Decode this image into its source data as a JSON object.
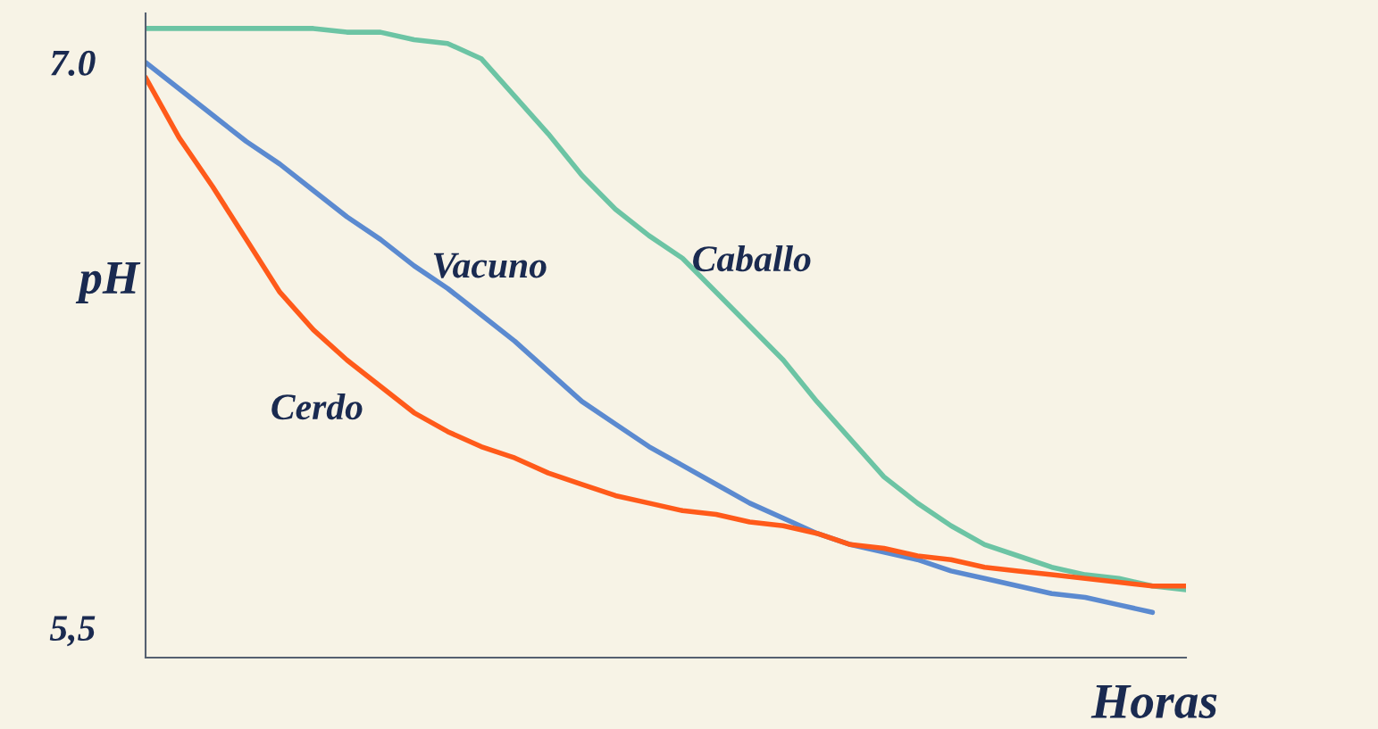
{
  "chart_data": {
    "type": "line",
    "ylabel": "pH",
    "xlabel": "Horas",
    "categories": [
      null,
      null,
      null,
      null,
      null,
      null,
      null,
      null,
      null,
      null,
      null,
      null,
      null,
      null,
      null,
      null,
      null,
      null,
      null,
      null,
      null,
      null,
      null,
      null,
      null,
      null,
      null,
      null,
      null,
      null,
      null,
      null
    ],
    "ylim": [
      5.42,
      7.13
    ],
    "yticks": [
      {
        "value": 7.0,
        "label": "7.0"
      },
      {
        "value": 5.5,
        "label": "5,5"
      }
    ],
    "grid": false,
    "legend": false,
    "marker": "none",
    "line_style": "solid",
    "series": [
      {
        "name": "Caballo",
        "color": "#6cc4a4",
        "values": [
          7.09,
          7.09,
          7.09,
          7.09,
          7.09,
          7.09,
          7.08,
          7.08,
          7.06,
          7.05,
          7.01,
          6.91,
          6.81,
          6.7,
          6.61,
          6.54,
          6.48,
          6.39,
          6.3,
          6.21,
          6.1,
          6.0,
          5.9,
          5.83,
          5.77,
          5.72,
          5.69,
          5.66,
          5.64,
          5.63,
          5.61,
          5.6
        ]
      },
      {
        "name": "Vacuno",
        "color": "#5b8ad0",
        "values": [
          7.0,
          6.93,
          6.86,
          6.79,
          6.73,
          6.66,
          6.59,
          6.53,
          6.46,
          6.4,
          6.33,
          6.26,
          6.18,
          6.1,
          6.04,
          5.98,
          5.93,
          5.88,
          5.83,
          5.79,
          5.75,
          5.72,
          5.7,
          5.68,
          5.65,
          5.63,
          5.61,
          5.59,
          5.58,
          5.56,
          5.54,
          null
        ]
      },
      {
        "name": "Cerdo",
        "color": "#ff5a1a",
        "values": [
          6.96,
          6.8,
          6.67,
          6.53,
          6.39,
          6.29,
          6.21,
          6.14,
          6.07,
          6.02,
          5.98,
          5.95,
          5.91,
          5.88,
          5.85,
          5.83,
          5.81,
          5.8,
          5.78,
          5.77,
          5.75,
          5.72,
          5.71,
          5.69,
          5.68,
          5.66,
          5.65,
          5.64,
          5.63,
          5.62,
          5.61,
          5.61
        ]
      }
    ]
  }
}
